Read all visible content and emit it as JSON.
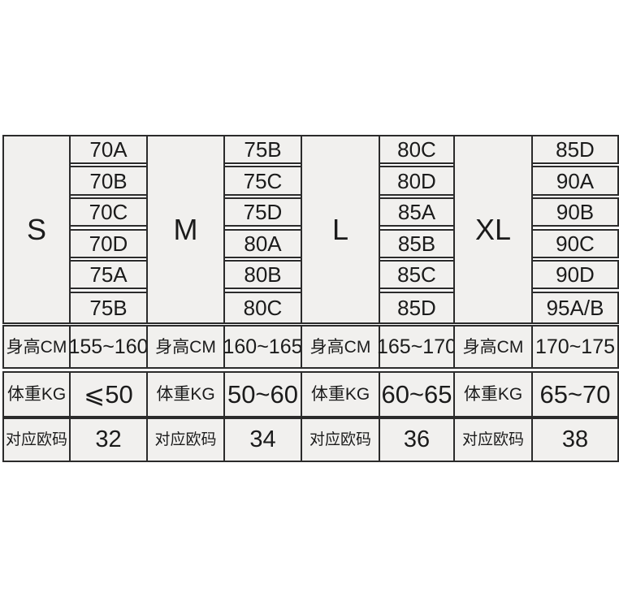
{
  "table": {
    "row_labels": {
      "height": "身高CM",
      "weight": "体重KG",
      "eu": "对应欧码"
    },
    "sizes": [
      {
        "label": "S",
        "cups": [
          "70A",
          "70B",
          "70C",
          "70D",
          "75A",
          "75B"
        ],
        "height": "155~160",
        "weight": "⩽50",
        "eu": "32"
      },
      {
        "label": "M",
        "cups": [
          "75B",
          "75C",
          "75D",
          "80A",
          "80B",
          "80C"
        ],
        "height": "160~165",
        "weight": "50~60",
        "eu": "34"
      },
      {
        "label": "L",
        "cups": [
          "80C",
          "80D",
          "85A",
          "85B",
          "85C",
          "85D"
        ],
        "height": "165~170",
        "weight": "60~65",
        "eu": "36"
      },
      {
        "label": "XL",
        "cups": [
          "85D",
          "90A",
          "90B",
          "90C",
          "90D",
          "95A/B"
        ],
        "height": "170~175",
        "weight": "65~70",
        "eu": "38"
      }
    ]
  },
  "colors": {
    "cell_fill": "#f1f0ee",
    "border": "#2b2b2b",
    "text": "#1b1b1b",
    "page_bg": "#ffffff"
  },
  "chart_data": {
    "type": "table",
    "row_labels": [
      "身高CM",
      "体重KG",
      "对应欧码"
    ],
    "groups": [
      {
        "size": "S",
        "cups": [
          "70A",
          "70B",
          "70C",
          "70D",
          "75A",
          "75B"
        ],
        "height_cm": "155~160",
        "weight_kg": "⩽50",
        "eu_size": "32"
      },
      {
        "size": "M",
        "cups": [
          "75B",
          "75C",
          "75D",
          "80A",
          "80B",
          "80C"
        ],
        "height_cm": "160~165",
        "weight_kg": "50~60",
        "eu_size": "34"
      },
      {
        "size": "L",
        "cups": [
          "80C",
          "80D",
          "85A",
          "85B",
          "85C",
          "85D"
        ],
        "height_cm": "165~170",
        "weight_kg": "60~65",
        "eu_size": "36"
      },
      {
        "size": "XL",
        "cups": [
          "85D",
          "90A",
          "90B",
          "90C",
          "90D",
          "95A/B"
        ],
        "height_cm": "170~175",
        "weight_kg": "65~70",
        "eu_size": "38"
      }
    ]
  }
}
